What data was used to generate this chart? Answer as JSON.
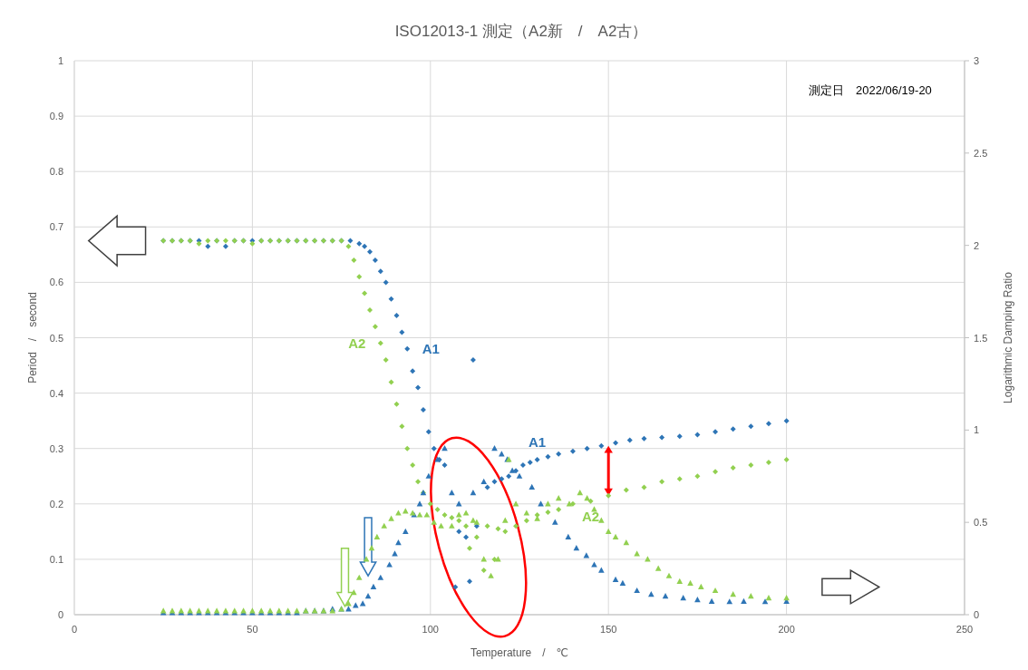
{
  "chart_data": {
    "type": "scatter",
    "title": "ISO12013-1 測定（A2新　/　A2古）",
    "xlabel": "Temperature　/　℃",
    "ylabel": "Period　/　second",
    "y2label": "Logarithmic Damping Ratio",
    "xlim": [
      0,
      250
    ],
    "xticks": [
      0,
      50,
      100,
      150,
      200,
      250
    ],
    "ylim": [
      0,
      1
    ],
    "yticks": [
      0,
      0.1,
      0.2,
      0.3,
      0.4,
      0.5,
      0.6,
      0.7,
      0.8,
      0.9,
      1
    ],
    "y2lim": [
      0,
      3
    ],
    "y2ticks": [
      0,
      0.5,
      1,
      1.5,
      2,
      2.5,
      3
    ],
    "grid": true,
    "annotations": [
      "測定日　2022/06/19-20"
    ],
    "series": [
      {
        "name": "A1",
        "color": "#2e75b6",
        "marker": "diamond",
        "x": [
          25,
          27.5,
          30,
          32.5,
          35,
          37.5,
          40,
          42.5,
          45,
          47.5,
          50,
          52.5,
          55,
          57.5,
          60,
          62.5,
          65,
          67.5,
          70,
          72.5,
          75,
          77.5,
          80,
          81.5,
          83,
          84.5,
          86,
          87.5,
          89,
          90.5,
          92,
          93.5,
          95,
          96.5,
          98,
          99.5,
          101,
          102.5,
          104,
          107,
          108,
          110,
          111,
          112,
          113,
          116,
          118,
          120,
          122,
          124,
          126,
          128,
          130,
          133,
          136,
          140,
          144,
          148,
          152,
          156,
          160,
          165,
          170,
          175,
          180,
          185,
          190,
          195,
          200
        ],
        "values": [
          0.675,
          0.675,
          0.675,
          0.675,
          0.675,
          0.665,
          0.675,
          0.665,
          0.675,
          0.675,
          0.675,
          0.675,
          0.675,
          0.675,
          0.675,
          0.675,
          0.675,
          0.675,
          0.675,
          0.675,
          0.675,
          0.675,
          0.67,
          0.665,
          0.655,
          0.64,
          0.62,
          0.6,
          0.57,
          0.54,
          0.51,
          0.48,
          0.44,
          0.41,
          0.37,
          0.33,
          0.3,
          0.28,
          0.27,
          0.05,
          0.15,
          0.14,
          0.06,
          0.46,
          0.16,
          0.23,
          0.24,
          0.245,
          0.25,
          0.26,
          0.27,
          0.275,
          0.28,
          0.285,
          0.29,
          0.295,
          0.3,
          0.305,
          0.31,
          0.315,
          0.318,
          0.32,
          0.322,
          0.325,
          0.33,
          0.335,
          0.34,
          0.345,
          0.35
        ]
      },
      {
        "name": "A2",
        "color": "#92d050",
        "marker": "diamond",
        "x": [
          25,
          27.5,
          30,
          32.5,
          35,
          37.5,
          40,
          42.5,
          45,
          47.5,
          50,
          52.5,
          55,
          57.5,
          60,
          62.5,
          65,
          67.5,
          70,
          72.5,
          75,
          77,
          78.5,
          80,
          81.5,
          83,
          84.5,
          86,
          87.5,
          89,
          90.5,
          92,
          93.5,
          95,
          96.5,
          98,
          100,
          102,
          104,
          106,
          108,
          110,
          111,
          113,
          115,
          116,
          118,
          119,
          121,
          124,
          127,
          130,
          133,
          136,
          140,
          145,
          150,
          155,
          160,
          165,
          170,
          175,
          180,
          185,
          190,
          195,
          200
        ],
        "values": [
          0.675,
          0.675,
          0.675,
          0.675,
          0.67,
          0.675,
          0.675,
          0.675,
          0.675,
          0.675,
          0.67,
          0.675,
          0.675,
          0.675,
          0.675,
          0.675,
          0.675,
          0.675,
          0.675,
          0.675,
          0.675,
          0.665,
          0.64,
          0.61,
          0.58,
          0.55,
          0.52,
          0.49,
          0.46,
          0.42,
          0.38,
          0.34,
          0.3,
          0.27,
          0.24,
          0.22,
          0.2,
          0.19,
          0.18,
          0.175,
          0.17,
          0.16,
          0.12,
          0.14,
          0.08,
          0.16,
          0.1,
          0.155,
          0.15,
          0.16,
          0.17,
          0.18,
          0.185,
          0.19,
          0.2,
          0.205,
          0.215,
          0.225,
          0.23,
          0.24,
          0.245,
          0.25,
          0.258,
          0.265,
          0.27,
          0.275,
          0.28
        ]
      },
      {
        "color": "#2e75b6",
        "marker": "triangle",
        "axis": "y2",
        "x": [
          25,
          27.5,
          30,
          32.5,
          35,
          37.5,
          40,
          42.5,
          45,
          47.5,
          50,
          52.5,
          55,
          57.5,
          60,
          62.5,
          65,
          67.5,
          70,
          72.5,
          75,
          77,
          79,
          81,
          82.5,
          84,
          86,
          88.5,
          90,
          91,
          93,
          95.4,
          97,
          98,
          99.5,
          102,
          104,
          106,
          108,
          112,
          115,
          118,
          120,
          121.6,
          123,
          125,
          128.5,
          131,
          135,
          138.7,
          141,
          143.8,
          146,
          148,
          152,
          154,
          158,
          162,
          166,
          171,
          175,
          179,
          184,
          188,
          194,
          200
        ],
        "values": [
          0.01,
          0.01,
          0.01,
          0.01,
          0.01,
          0.01,
          0.01,
          0.01,
          0.01,
          0.01,
          0.01,
          0.01,
          0.01,
          0.01,
          0.01,
          0.01,
          0.02,
          0.02,
          0.02,
          0.03,
          0.03,
          0.03,
          0.05,
          0.06,
          0.1,
          0.15,
          0.2,
          0.27,
          0.33,
          0.39,
          0.45,
          0.54,
          0.6,
          0.66,
          0.75,
          0.84,
          0.9,
          0.66,
          0.6,
          0.66,
          0.72,
          0.9,
          0.87,
          0.84,
          0.78,
          0.75,
          0.69,
          0.6,
          0.5,
          0.42,
          0.36,
          0.32,
          0.27,
          0.24,
          0.19,
          0.17,
          0.13,
          0.11,
          0.1,
          0.09,
          0.08,
          0.072,
          0.07,
          0.072,
          0.07,
          0.072
        ]
      },
      {
        "color": "#92d050",
        "marker": "triangle",
        "axis": "y2",
        "x": [
          25,
          27.5,
          30,
          32.5,
          35,
          37.5,
          40,
          42.5,
          45,
          47.5,
          50,
          52.5,
          55,
          57.5,
          60,
          62.5,
          65,
          67.5,
          70,
          72.5,
          75,
          77,
          78.5,
          80,
          82,
          83.5,
          85,
          87,
          89,
          91,
          93,
          95,
          97,
          99,
          101,
          103,
          106,
          108,
          110,
          112,
          113,
          115,
          117,
          119,
          121,
          122,
          124,
          127,
          130,
          133,
          136,
          139,
          142,
          144,
          146,
          148,
          150,
          152,
          155,
          158,
          161,
          164,
          167,
          170,
          173,
          176,
          180,
          185,
          190,
          195,
          200
        ],
        "values": [
          0.02,
          0.02,
          0.02,
          0.02,
          0.02,
          0.02,
          0.02,
          0.02,
          0.02,
          0.02,
          0.02,
          0.02,
          0.02,
          0.02,
          0.02,
          0.02,
          0.02,
          0.02,
          0.02,
          0.02,
          0.03,
          0.06,
          0.12,
          0.2,
          0.3,
          0.36,
          0.42,
          0.48,
          0.52,
          0.55,
          0.56,
          0.55,
          0.54,
          0.54,
          0.5,
          0.48,
          0.48,
          0.54,
          0.55,
          0.51,
          0.5,
          0.3,
          0.21,
          0.3,
          0.51,
          0.84,
          0.6,
          0.55,
          0.52,
          0.6,
          0.63,
          0.6,
          0.66,
          0.63,
          0.57,
          0.51,
          0.45,
          0.42,
          0.39,
          0.33,
          0.3,
          0.25,
          0.21,
          0.18,
          0.17,
          0.15,
          0.13,
          0.11,
          0.1,
          0.09,
          0.09
        ]
      }
    ]
  }
}
